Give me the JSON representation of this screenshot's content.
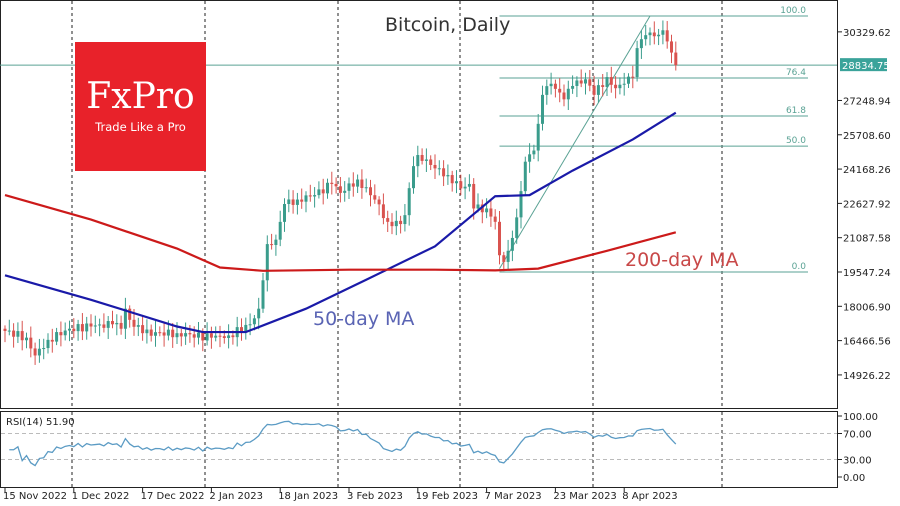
{
  "chart_data": {
    "type": "candlestick",
    "title": "Bitcoin, Daily",
    "price_ticks": [
      30329.62,
      27248.94,
      25708.6,
      24168.26,
      22627.92,
      21087.58,
      19547.24,
      18006.9,
      16466.56,
      14926.22
    ],
    "current_price": "28834.75",
    "date_ticks": [
      "15 Nov 2022",
      "1 Dec 2022",
      "17 Dec 2022",
      "2 Jan 2023",
      "18 Jan 2023",
      "3 Feb 2023",
      "19 Feb 2023",
      "7 Mar 2023",
      "23 Mar 2023",
      "8 Apr 2023"
    ],
    "date_tick_days": [
      0,
      16,
      32,
      48,
      64,
      80,
      96,
      112,
      128,
      144
    ],
    "close_keypoints": [
      [
        0,
        16900
      ],
      [
        5,
        16600
      ],
      [
        7,
        15800
      ],
      [
        10,
        16500
      ],
      [
        15,
        17000
      ],
      [
        20,
        17100
      ],
      [
        25,
        17200
      ],
      [
        27,
        17000
      ],
      [
        28,
        17900
      ],
      [
        29,
        17400
      ],
      [
        32,
        16800
      ],
      [
        40,
        16800
      ],
      [
        48,
        16600
      ],
      [
        52,
        16700
      ],
      [
        57,
        17200
      ],
      [
        59,
        17900
      ],
      [
        61,
        20800
      ],
      [
        63,
        21000
      ],
      [
        65,
        22600
      ],
      [
        68,
        22800
      ],
      [
        72,
        23000
      ],
      [
        76,
        23500
      ],
      [
        78,
        23100
      ],
      [
        82,
        23700
      ],
      [
        86,
        22800
      ],
      [
        89,
        21800
      ],
      [
        92,
        21700
      ],
      [
        93,
        22100
      ],
      [
        95,
        24300
      ],
      [
        96,
        24800
      ],
      [
        98,
        24600
      ],
      [
        100,
        24200
      ],
      [
        103,
        23900
      ],
      [
        106,
        23300
      ],
      [
        108,
        23500
      ],
      [
        109,
        22400
      ],
      [
        112,
        22400
      ],
      [
        114,
        21800
      ],
      [
        115,
        20300
      ],
      [
        116,
        20000
      ],
      [
        117,
        20500
      ],
      [
        119,
        22000
      ],
      [
        121,
        24500
      ],
      [
        123,
        25000
      ],
      [
        124,
        26200
      ],
      [
        125,
        27500
      ],
      [
        127,
        28000
      ],
      [
        130,
        27300
      ],
      [
        132,
        27900
      ],
      [
        135,
        28200
      ],
      [
        137,
        27500
      ],
      [
        140,
        28300
      ],
      [
        142,
        27800
      ],
      [
        144,
        28000
      ],
      [
        146,
        28300
      ],
      [
        147,
        29600
      ],
      [
        148,
        30000
      ],
      [
        150,
        30300
      ],
      [
        152,
        30200
      ],
      [
        153,
        30400
      ],
      [
        154,
        29900
      ],
      [
        155,
        29400
      ],
      [
        156,
        28835
      ]
    ],
    "ma50": {
      "label": "50-day MA",
      "color": "#1a1aa8",
      "points": [
        [
          0,
          19400
        ],
        [
          20,
          18300
        ],
        [
          40,
          17100
        ],
        [
          46,
          16850
        ],
        [
          56,
          16850
        ],
        [
          70,
          17900
        ],
        [
          84,
          19200
        ],
        [
          100,
          20700
        ],
        [
          114,
          22950
        ],
        [
          122,
          23000
        ],
        [
          132,
          24100
        ],
        [
          146,
          25500
        ],
        [
          156,
          26700
        ]
      ]
    },
    "ma200": {
      "label": "200-day MA",
      "color": "#cc1a1a",
      "points": [
        [
          0,
          23000
        ],
        [
          20,
          21900
        ],
        [
          40,
          20600
        ],
        [
          50,
          19750
        ],
        [
          60,
          19600
        ],
        [
          80,
          19650
        ],
        [
          100,
          19650
        ],
        [
          114,
          19620
        ],
        [
          124,
          19700
        ],
        [
          140,
          20500
        ],
        [
          156,
          21330
        ]
      ]
    },
    "fibonacci": {
      "levels": [
        {
          "label": "100.0",
          "price": 31040
        },
        {
          "label": "76.4",
          "price": 28260
        },
        {
          "label": "61.8",
          "price": 26550
        },
        {
          "label": "50.0",
          "price": 25200
        },
        {
          "label": "0.0",
          "price": 19547
        }
      ],
      "start_day": 115,
      "trend_from": [
        115,
        19700
      ],
      "trend_to": [
        150,
        31040
      ]
    },
    "rsi": {
      "label": "RSI(14) 51.90",
      "ticks": [
        "100.00",
        "70.00",
        "30.00",
        "0.00"
      ]
    },
    "colors": {
      "up": "#3a9c8c",
      "down": "#d9534f",
      "fib": "#5aa294"
    }
  },
  "logo": {
    "brand": "FxPro",
    "tagline": "Trade Like a Pro"
  }
}
